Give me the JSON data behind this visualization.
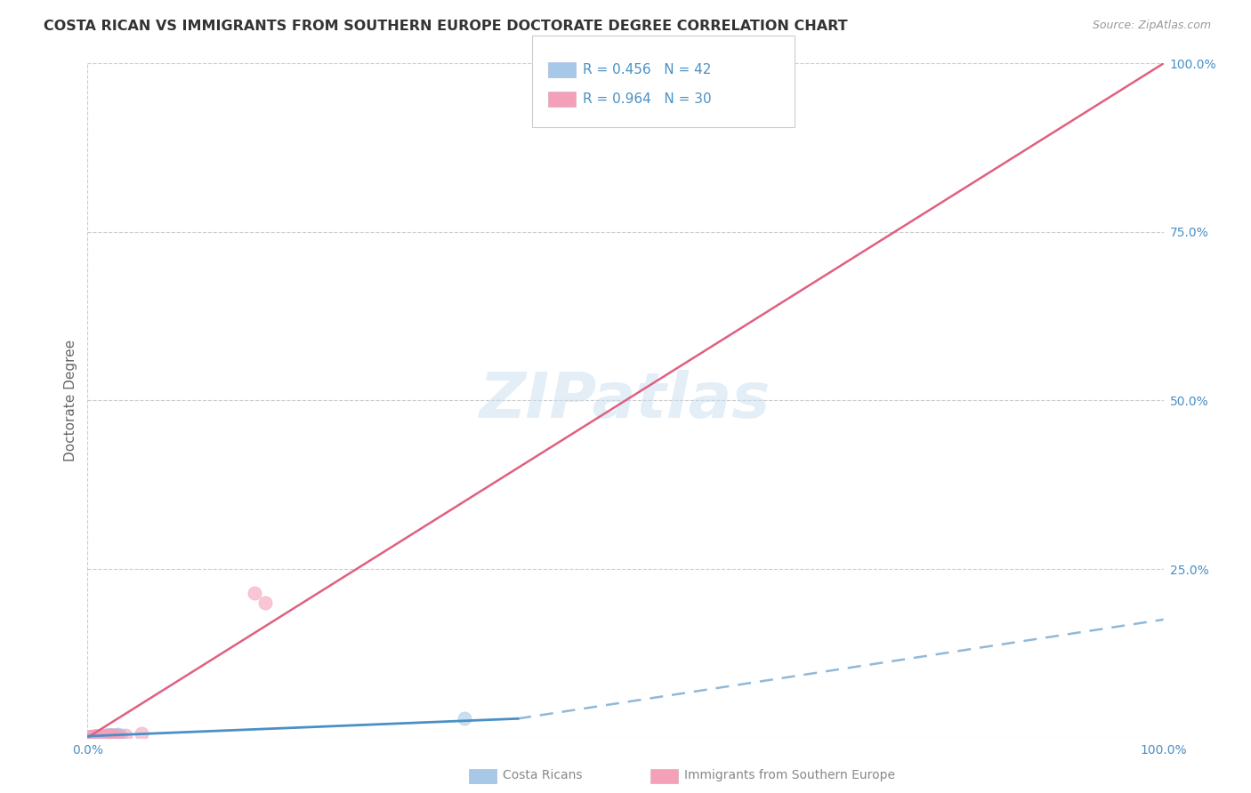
{
  "title": "COSTA RICAN VS IMMIGRANTS FROM SOUTHERN EUROPE DOCTORATE DEGREE CORRELATION CHART",
  "source": "Source: ZipAtlas.com",
  "ylabel": "Doctorate Degree",
  "xlim": [
    0,
    100
  ],
  "ylim": [
    0,
    100
  ],
  "watermark": "ZIPatlas",
  "legend_r1": "R = 0.456",
  "legend_n1": "N = 42",
  "legend_r2": "R = 0.964",
  "legend_n2": "N = 30",
  "color_blue": "#a8c8e8",
  "color_pink": "#f4a0b8",
  "color_blue_line": "#4a90c4",
  "color_pink_line": "#e06080",
  "color_blue_dash": "#90b8d8",
  "color_axis_label": "#4a90c4",
  "color_title": "#333333",
  "color_source": "#999999",
  "grid_color": "#cccccc",
  "costa_rican_x": [
    0.2,
    0.5,
    0.8,
    1.0,
    1.3,
    1.5,
    1.7,
    2.0,
    2.2,
    2.5,
    2.7,
    3.0,
    0.3,
    0.6,
    0.9,
    1.2,
    1.6,
    1.9,
    2.3,
    0.15,
    0.4,
    0.7,
    1.1,
    1.4,
    1.8,
    2.1,
    2.6,
    2.9,
    0.25,
    0.55,
    0.75,
    1.05,
    1.35,
    1.65,
    1.95,
    2.35,
    35.0,
    0.1,
    0.45,
    0.85,
    1.25,
    1.75
  ],
  "costa_rican_y": [
    0.08,
    0.15,
    0.12,
    0.2,
    0.18,
    0.25,
    0.22,
    0.3,
    0.28,
    0.35,
    0.32,
    0.4,
    0.1,
    0.18,
    0.15,
    0.22,
    0.28,
    0.32,
    0.38,
    0.06,
    0.12,
    0.14,
    0.2,
    0.24,
    0.28,
    0.32,
    0.36,
    0.42,
    0.09,
    0.16,
    0.13,
    0.21,
    0.19,
    0.26,
    0.3,
    0.36,
    2.8,
    0.05,
    0.11,
    0.17,
    0.23,
    0.29
  ],
  "southern_europe_x": [
    0.1,
    0.3,
    0.5,
    0.7,
    0.9,
    1.1,
    1.3,
    1.5,
    1.7,
    1.9,
    2.1,
    2.3,
    2.6,
    0.2,
    0.4,
    0.6,
    0.8,
    1.0,
    1.2,
    1.4,
    1.6,
    1.8,
    2.0,
    2.2,
    3.5,
    5.0,
    0.35,
    0.65,
    15.5,
    16.5
  ],
  "southern_europe_y": [
    0.08,
    0.1,
    0.12,
    0.14,
    0.16,
    0.18,
    0.2,
    0.22,
    0.24,
    0.26,
    0.28,
    0.3,
    0.34,
    0.09,
    0.11,
    0.13,
    0.15,
    0.17,
    0.19,
    0.21,
    0.23,
    0.25,
    0.27,
    0.29,
    0.4,
    0.55,
    0.1,
    0.13,
    21.5,
    20.0
  ],
  "pink_trend_x0": 0,
  "pink_trend_y0": 0,
  "pink_trend_x1": 100,
  "pink_trend_y1": 100,
  "blue_solid_x0": 0,
  "blue_solid_y0": 0.2,
  "blue_solid_x1": 40,
  "blue_solid_y1": 2.8,
  "blue_dash_x0": 40,
  "blue_dash_y0": 2.8,
  "blue_dash_x1": 100,
  "blue_dash_y1": 17.5
}
